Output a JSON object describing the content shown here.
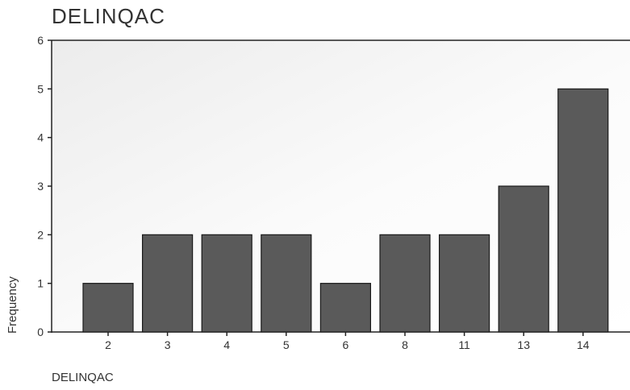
{
  "chart_data": {
    "type": "bar",
    "title": "DELINQAC",
    "xlabel": "DELINQAC",
    "ylabel": "Frequency",
    "categories": [
      "2",
      "3",
      "4",
      "5",
      "6",
      "8",
      "11",
      "13",
      "14"
    ],
    "values": [
      1,
      2,
      2,
      2,
      1,
      2,
      2,
      3,
      5
    ],
    "ylim": [
      0,
      6
    ],
    "yticks": [
      0,
      1,
      2,
      3,
      4,
      5,
      6
    ],
    "grid": false,
    "legend": "none",
    "bar_color": "#5a5a5a",
    "bar_edge_color": "#1a1a1a",
    "axis_color": "#222222"
  }
}
